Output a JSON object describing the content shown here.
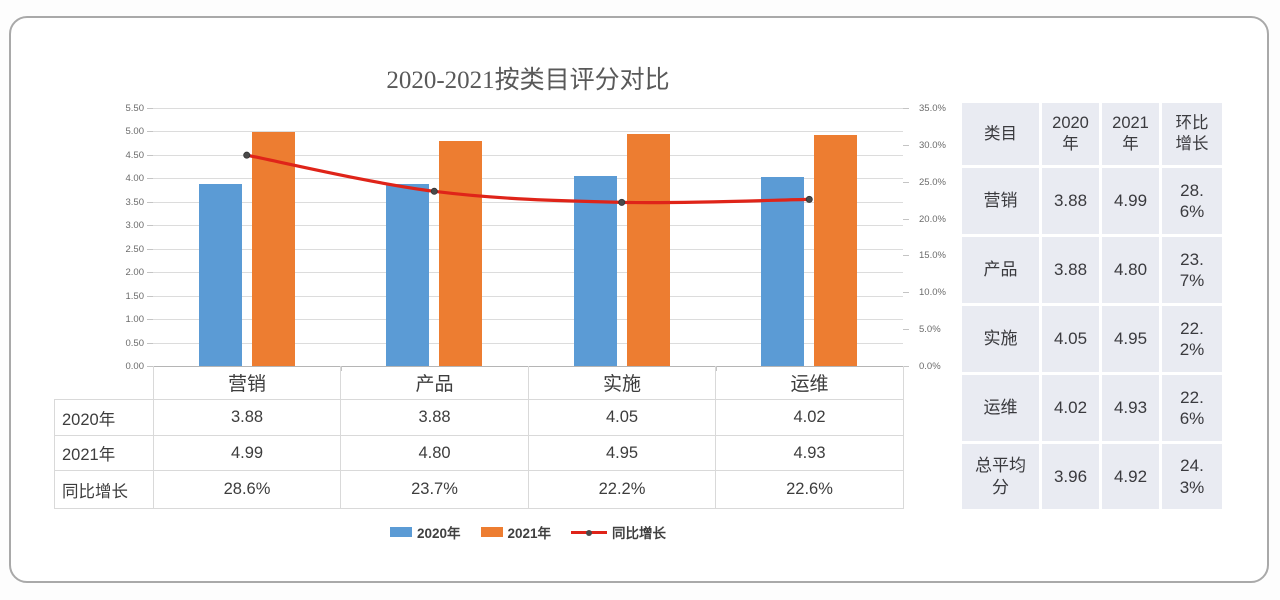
{
  "chart_data": {
    "type": "bar+line",
    "title": "2020-2021按类目评分对比",
    "categories": [
      "营销",
      "产品",
      "实施",
      "运维"
    ],
    "series": [
      {
        "name": "2020年",
        "type": "bar",
        "color": "#5b9bd5",
        "axis": "left",
        "values": [
          3.88,
          3.88,
          4.05,
          4.02
        ]
      },
      {
        "name": "2021年",
        "type": "bar",
        "color": "#ed7d31",
        "axis": "left",
        "values": [
          4.99,
          4.8,
          4.95,
          4.93
        ]
      },
      {
        "name": "同比增长",
        "type": "line",
        "color": "#df2419",
        "marker_color": "#4a4a4a",
        "axis": "right",
        "values": [
          28.6,
          23.7,
          22.2,
          22.6
        ]
      }
    ],
    "left_axis": {
      "min": 0,
      "max": 5.5,
      "step": 0.5,
      "labels": [
        "5.50",
        "5.00",
        "4.50",
        "4.00",
        "3.50",
        "3.00",
        "2.50",
        "2.00",
        "1.50",
        "1.00",
        "0.50",
        "0.00"
      ]
    },
    "right_axis": {
      "min": 0,
      "max": 35,
      "step": 5,
      "labels": [
        "35.0%",
        "30.0%",
        "25.0%",
        "20.0%",
        "15.0%",
        "10.0%",
        "5.0%",
        "0.0%"
      ]
    },
    "grid": true,
    "legend_position": "bottom",
    "data_table": {
      "row_labels": [
        "2020年",
        "2021年",
        "同比增长"
      ],
      "rows": [
        [
          "3.88",
          "3.88",
          "4.05",
          "4.02"
        ],
        [
          "4.99",
          "4.80",
          "4.95",
          "4.93"
        ],
        [
          "28.6%",
          "23.7%",
          "22.2%",
          "22.6%"
        ]
      ]
    },
    "legend": [
      {
        "label": "2020年",
        "swatch": "bar",
        "color": "#5b9bd5"
      },
      {
        "label": "2021年",
        "swatch": "bar",
        "color": "#ed7d31"
      },
      {
        "label": "同比增长",
        "swatch": "line",
        "color": "#df2419"
      }
    ]
  },
  "summary_table": {
    "headers": [
      "类目",
      "2020年",
      "2021年",
      "环比增长"
    ],
    "rows": [
      [
        "营销",
        "3.88",
        "4.99",
        "28.6%"
      ],
      [
        "产品",
        "3.88",
        "4.80",
        "23.7%"
      ],
      [
        "实施",
        "4.05",
        "4.95",
        "22.2%"
      ],
      [
        "运维",
        "4.02",
        "4.93",
        "22.6%"
      ],
      [
        "总平均分",
        "3.96",
        "4.92",
        "24.3%"
      ]
    ]
  }
}
